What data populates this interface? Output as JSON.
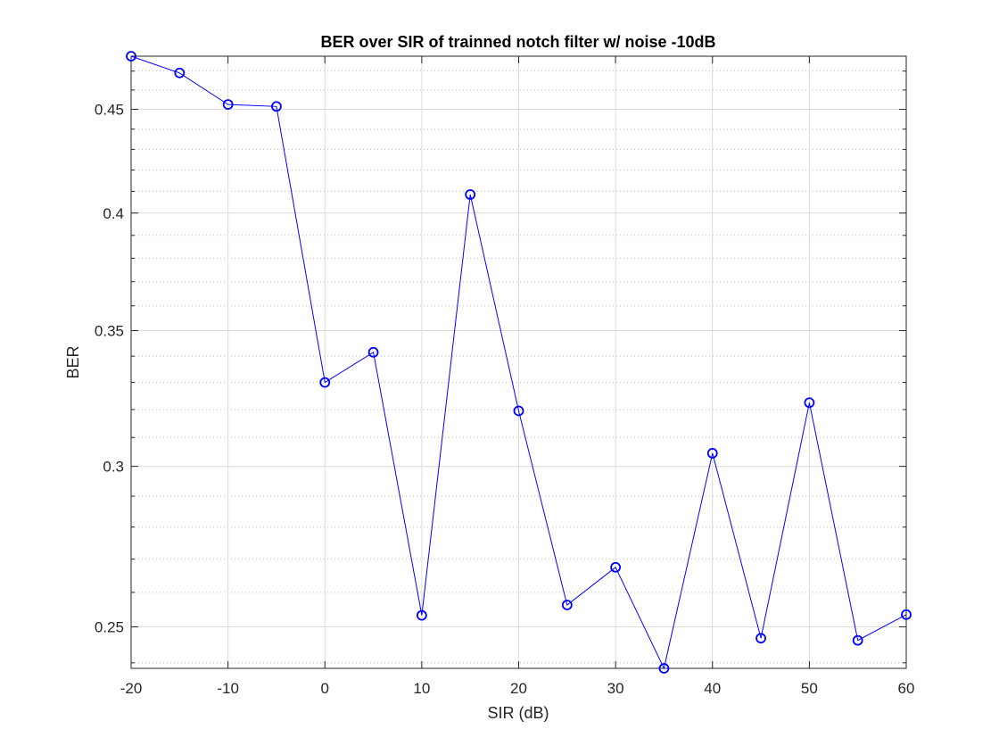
{
  "chart_data": {
    "type": "line",
    "title": "BER over SIR of trainned notch filter w/ noise -10dB",
    "xlabel": "SIR (dB)",
    "ylabel": "BER",
    "xlim": [
      -20,
      60
    ],
    "ylim": [
      0.2385,
      0.478
    ],
    "y_scale": "log",
    "grid": true,
    "minor_grid": true,
    "x_ticks": [
      -20,
      -10,
      0,
      10,
      20,
      30,
      40,
      50,
      60
    ],
    "x_tick_labels": [
      "-20",
      "-10",
      "0",
      "10",
      "20",
      "30",
      "40",
      "50",
      "60"
    ],
    "y_ticks": [
      0.25,
      0.3,
      0.35,
      0.4,
      0.45
    ],
    "y_tick_labels": [
      "0.25",
      "0.3",
      "0.35",
      "0.4",
      "0.45"
    ],
    "y_minor_ticks": [
      0.24,
      0.26,
      0.27,
      0.28,
      0.29,
      0.31,
      0.32,
      0.33,
      0.34,
      0.36,
      0.37,
      0.38,
      0.39,
      0.41,
      0.42,
      0.43,
      0.44,
      0.46,
      0.47
    ],
    "series": [
      {
        "color": "#0000ff",
        "marker": "circle",
        "x": [
          -20,
          -15,
          -10,
          -5,
          0,
          5,
          10,
          15,
          20,
          25,
          30,
          35,
          40,
          45,
          50,
          55,
          60
        ],
        "y": [
          0.478,
          0.469,
          0.4525,
          0.4515,
          0.33,
          0.3415,
          0.2533,
          0.4085,
          0.3195,
          0.2563,
          0.2675,
          0.2385,
          0.3045,
          0.2468,
          0.3225,
          0.2462,
          0.2535
        ]
      }
    ]
  }
}
